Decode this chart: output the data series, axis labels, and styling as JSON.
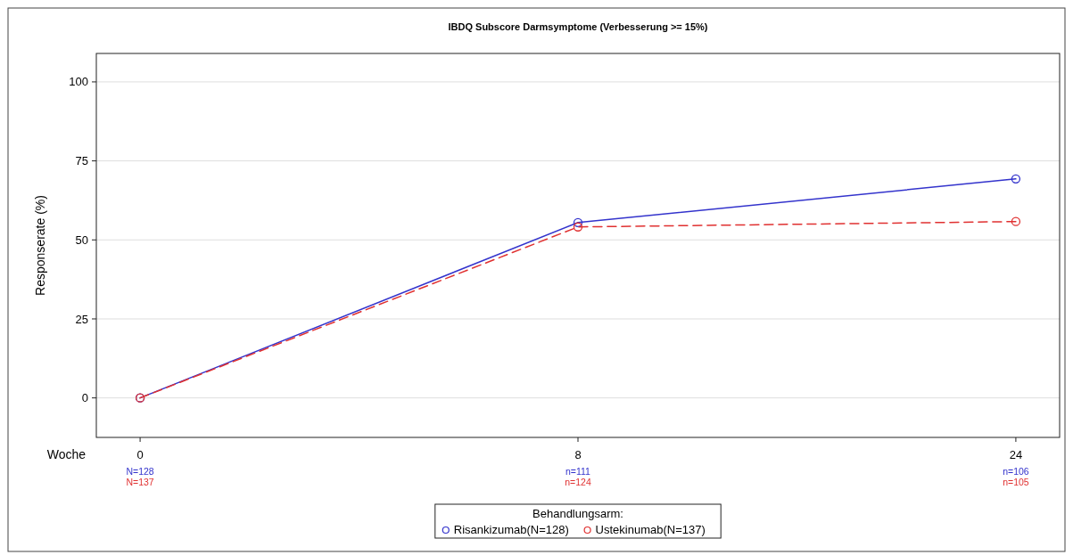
{
  "chart_data": {
    "type": "line",
    "title": "IBDQ Subscore Darmsymptome (Verbesserung >= 15%)",
    "xlabel": "Woche",
    "ylabel": "Responserate (%)",
    "legend_title": "Behandlungsarm:",
    "categories": [
      "0",
      "8",
      "24"
    ],
    "series": [
      {
        "name": "Risankizumab(N=128)",
        "color": "#3333cc",
        "values": [
          0,
          55.5,
          69.3
        ],
        "line_style": "solid"
      },
      {
        "name": "Ustekinumab(N=137)",
        "color": "#e03030",
        "values": [
          0,
          54.1,
          55.8
        ],
        "line_style": "dashed"
      }
    ],
    "ylim": [
      -12.5,
      109
    ],
    "yticks": [
      0,
      25,
      50,
      75,
      100
    ],
    "grid": "y",
    "legend": "bottom",
    "marker": "circle",
    "annotations": [
      "N=128",
      "N=137",
      "n=111",
      "n=124",
      "n=106",
      "n=105"
    ]
  }
}
